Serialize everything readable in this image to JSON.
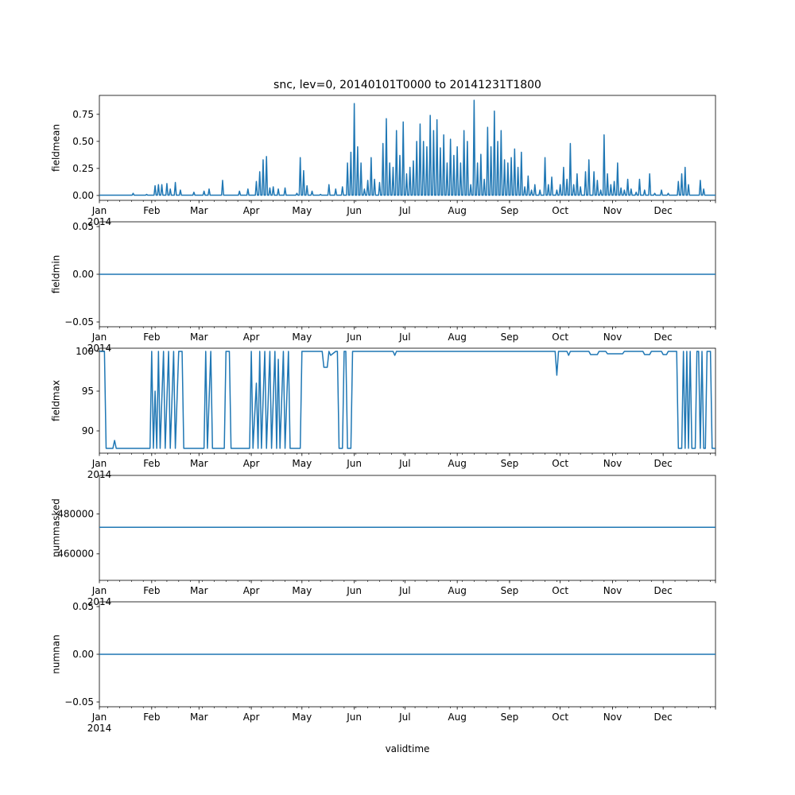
{
  "figure": {
    "title": "snc, lev=0, 20140101T0000 to 20141231T1800",
    "xlabel": "validtime",
    "year_label": "2014",
    "months": [
      "Jan",
      "Feb",
      "Mar",
      "Apr",
      "May",
      "Jun",
      "Jul",
      "Aug",
      "Sep",
      "Oct",
      "Nov",
      "Dec"
    ],
    "month_start_days": [
      0,
      31,
      59,
      90,
      120,
      151,
      181,
      212,
      243,
      273,
      304,
      334
    ],
    "days_in_year": 365,
    "line_color": "#1f77b4"
  },
  "chart_data": [
    {
      "type": "line",
      "ylabel": "fieldmean",
      "ylim": [
        -0.045,
        0.925
      ],
      "yticks": [
        0.0,
        0.25,
        0.5,
        0.75
      ],
      "ytick_labels": [
        "0.00",
        "0.25",
        "0.50",
        "0.75"
      ],
      "mode": "spiky",
      "baseline": 0.003,
      "spikes": [
        [
          20,
          0.02
        ],
        [
          28,
          0.01
        ],
        [
          33,
          0.09
        ],
        [
          35,
          0.1
        ],
        [
          37,
          0.1
        ],
        [
          40,
          0.11
        ],
        [
          42,
          0.06
        ],
        [
          45,
          0.12
        ],
        [
          48,
          0.05
        ],
        [
          56,
          0.03
        ],
        [
          62,
          0.04
        ],
        [
          65,
          0.06
        ],
        [
          73,
          0.14
        ],
        [
          83,
          0.04
        ],
        [
          88,
          0.06
        ],
        [
          93,
          0.13
        ],
        [
          95,
          0.22
        ],
        [
          97,
          0.33
        ],
        [
          99,
          0.36
        ],
        [
          101,
          0.07
        ],
        [
          103,
          0.08
        ],
        [
          106,
          0.06
        ],
        [
          110,
          0.07
        ],
        [
          117,
          0.02
        ],
        [
          119,
          0.35
        ],
        [
          121,
          0.23
        ],
        [
          123,
          0.09
        ],
        [
          126,
          0.04
        ],
        [
          131,
          0.01
        ],
        [
          136,
          0.1
        ],
        [
          140,
          0.06
        ],
        [
          144,
          0.08
        ],
        [
          147,
          0.3
        ],
        [
          149,
          0.4
        ],
        [
          151,
          0.85
        ],
        [
          153,
          0.45
        ],
        [
          155,
          0.3
        ],
        [
          157,
          0.06
        ],
        [
          159,
          0.14
        ],
        [
          161,
          0.35
        ],
        [
          163,
          0.15
        ],
        [
          166,
          0.12
        ],
        [
          168,
          0.48
        ],
        [
          170,
          0.71
        ],
        [
          172,
          0.3
        ],
        [
          174,
          0.26
        ],
        [
          176,
          0.6
        ],
        [
          178,
          0.37
        ],
        [
          180,
          0.68
        ],
        [
          182,
          0.2
        ],
        [
          184,
          0.26
        ],
        [
          186,
          0.32
        ],
        [
          188,
          0.5
        ],
        [
          190,
          0.66
        ],
        [
          192,
          0.5
        ],
        [
          194,
          0.45
        ],
        [
          196,
          0.74
        ],
        [
          198,
          0.6
        ],
        [
          200,
          0.7
        ],
        [
          202,
          0.44
        ],
        [
          204,
          0.56
        ],
        [
          206,
          0.3
        ],
        [
          208,
          0.52
        ],
        [
          210,
          0.37
        ],
        [
          212,
          0.45
        ],
        [
          214,
          0.3
        ],
        [
          216,
          0.6
        ],
        [
          218,
          0.5
        ],
        [
          220,
          0.1
        ],
        [
          222,
          0.88
        ],
        [
          224,
          0.3
        ],
        [
          226,
          0.38
        ],
        [
          228,
          0.15
        ],
        [
          230,
          0.63
        ],
        [
          232,
          0.45
        ],
        [
          234,
          0.78
        ],
        [
          236,
          0.5
        ],
        [
          238,
          0.6
        ],
        [
          240,
          0.33
        ],
        [
          242,
          0.3
        ],
        [
          244,
          0.35
        ],
        [
          246,
          0.43
        ],
        [
          248,
          0.26
        ],
        [
          250,
          0.4
        ],
        [
          252,
          0.08
        ],
        [
          254,
          0.18
        ],
        [
          256,
          0.05
        ],
        [
          258,
          0.1
        ],
        [
          261,
          0.05
        ],
        [
          264,
          0.35
        ],
        [
          266,
          0.1
        ],
        [
          268,
          0.17
        ],
        [
          271,
          0.05
        ],
        [
          273,
          0.1
        ],
        [
          275,
          0.26
        ],
        [
          277,
          0.15
        ],
        [
          279,
          0.48
        ],
        [
          281,
          0.1
        ],
        [
          283,
          0.2
        ],
        [
          285,
          0.08
        ],
        [
          288,
          0.22
        ],
        [
          290,
          0.33
        ],
        [
          293,
          0.22
        ],
        [
          295,
          0.14
        ],
        [
          297,
          0.05
        ],
        [
          299,
          0.56
        ],
        [
          301,
          0.2
        ],
        [
          303,
          0.1
        ],
        [
          305,
          0.13
        ],
        [
          307,
          0.3
        ],
        [
          309,
          0.07
        ],
        [
          311,
          0.05
        ],
        [
          313,
          0.15
        ],
        [
          315,
          0.06
        ],
        [
          318,
          0.03
        ],
        [
          320,
          0.15
        ],
        [
          323,
          0.05
        ],
        [
          326,
          0.2
        ],
        [
          329,
          0.02
        ],
        [
          333,
          0.05
        ],
        [
          337,
          0.02
        ],
        [
          343,
          0.13
        ],
        [
          345,
          0.2
        ],
        [
          347,
          0.26
        ],
        [
          349,
          0.1
        ],
        [
          356,
          0.14
        ],
        [
          358,
          0.06
        ]
      ]
    },
    {
      "type": "line",
      "ylabel": "fieldmin",
      "ylim": [
        -0.055,
        0.055
      ],
      "yticks": [
        0.05,
        0.0,
        -0.05
      ],
      "ytick_labels": [
        "0.05",
        "0.00",
        "−0.05"
      ],
      "mode": "constant",
      "value": 0.0
    },
    {
      "type": "line",
      "ylabel": "fieldmax",
      "ylim": [
        87.2,
        100.4
      ],
      "yticks": [
        100,
        95,
        90
      ],
      "ytick_labels": [
        "100",
        "95",
        "90"
      ],
      "mode": "step",
      "step_points": [
        [
          0,
          100
        ],
        [
          2,
          100
        ],
        [
          3,
          100
        ],
        [
          4,
          87.8
        ],
        [
          8,
          87.8
        ],
        [
          9,
          88.8
        ],
        [
          10,
          87.8
        ],
        [
          30,
          87.8
        ],
        [
          31,
          100
        ],
        [
          32,
          87.8
        ],
        [
          33,
          95
        ],
        [
          34,
          87.8
        ],
        [
          35,
          100
        ],
        [
          36,
          87.8
        ],
        [
          38,
          100
        ],
        [
          39,
          87.8
        ],
        [
          41,
          100
        ],
        [
          42,
          87.8
        ],
        [
          44,
          100
        ],
        [
          45,
          87.8
        ],
        [
          47,
          100
        ],
        [
          48,
          100
        ],
        [
          49,
          100
        ],
        [
          50,
          87.8
        ],
        [
          62,
          87.8
        ],
        [
          63,
          100
        ],
        [
          64,
          87.8
        ],
        [
          66,
          100
        ],
        [
          67,
          87.8
        ],
        [
          74,
          87.8
        ],
        [
          75,
          100
        ],
        [
          77,
          100
        ],
        [
          78,
          87.8
        ],
        [
          89,
          87.8
        ],
        [
          90,
          100
        ],
        [
          91,
          87.8
        ],
        [
          93,
          96
        ],
        [
          94,
          87.8
        ],
        [
          95,
          100
        ],
        [
          96,
          87.8
        ],
        [
          98,
          100
        ],
        [
          99,
          87.8
        ],
        [
          101,
          100
        ],
        [
          102,
          87.8
        ],
        [
          104,
          100
        ],
        [
          105,
          87.8
        ],
        [
          106,
          99
        ],
        [
          107,
          87.8
        ],
        [
          109,
          100
        ],
        [
          110,
          87.8
        ],
        [
          112,
          100
        ],
        [
          113,
          87.8
        ],
        [
          119,
          87.8
        ],
        [
          120,
          100
        ],
        [
          132,
          100
        ],
        [
          133,
          98
        ],
        [
          135,
          98
        ],
        [
          136,
          100
        ],
        [
          137,
          99.5
        ],
        [
          140,
          100
        ],
        [
          141,
          100
        ],
        [
          142,
          87.8
        ],
        [
          144,
          87.8
        ],
        [
          145,
          100
        ],
        [
          146,
          100
        ],
        [
          147,
          87.8
        ],
        [
          149,
          87.8
        ],
        [
          150,
          100
        ],
        [
          174,
          100
        ],
        [
          175,
          99.5
        ],
        [
          176,
          100
        ],
        [
          270,
          100
        ],
        [
          271,
          97
        ],
        [
          272,
          100
        ],
        [
          277,
          100
        ],
        [
          278,
          99.5
        ],
        [
          279,
          100
        ],
        [
          290,
          100
        ],
        [
          291,
          99.6
        ],
        [
          295,
          99.6
        ],
        [
          296,
          100
        ],
        [
          300,
          100
        ],
        [
          301,
          99.7
        ],
        [
          310,
          99.7
        ],
        [
          311,
          100
        ],
        [
          322,
          100
        ],
        [
          323,
          99.6
        ],
        [
          326,
          99.6
        ],
        [
          327,
          100
        ],
        [
          333,
          100
        ],
        [
          334,
          99.6
        ],
        [
          336,
          99.6
        ],
        [
          337,
          100
        ],
        [
          342,
          100
        ],
        [
          343,
          87.8
        ],
        [
          345,
          87.8
        ],
        [
          346,
          100
        ],
        [
          347,
          87.8
        ],
        [
          348,
          100
        ],
        [
          349,
          87.8
        ],
        [
          350,
          100
        ],
        [
          351,
          87.8
        ],
        [
          353,
          87.8
        ],
        [
          354,
          100
        ],
        [
          355,
          100
        ],
        [
          356,
          87.8
        ],
        [
          357,
          100
        ],
        [
          358,
          87.8
        ],
        [
          359,
          87.8
        ],
        [
          360,
          100
        ],
        [
          362,
          100
        ],
        [
          363,
          87.8
        ],
        [
          365,
          87.8
        ]
      ]
    },
    {
      "type": "line",
      "ylabel": "nummasked",
      "ylim": [
        446800,
        499200
      ],
      "yticks": [
        480000,
        460000
      ],
      "ytick_labels": [
        "480000",
        "460000"
      ],
      "mode": "constant",
      "value": 473320
    },
    {
      "type": "line",
      "ylabel": "numnan",
      "ylim": [
        -0.055,
        0.055
      ],
      "yticks": [
        0.05,
        0.0,
        -0.05
      ],
      "ytick_labels": [
        "0.05",
        "0.00",
        "−0.05"
      ],
      "mode": "constant",
      "value": 0.0
    }
  ]
}
